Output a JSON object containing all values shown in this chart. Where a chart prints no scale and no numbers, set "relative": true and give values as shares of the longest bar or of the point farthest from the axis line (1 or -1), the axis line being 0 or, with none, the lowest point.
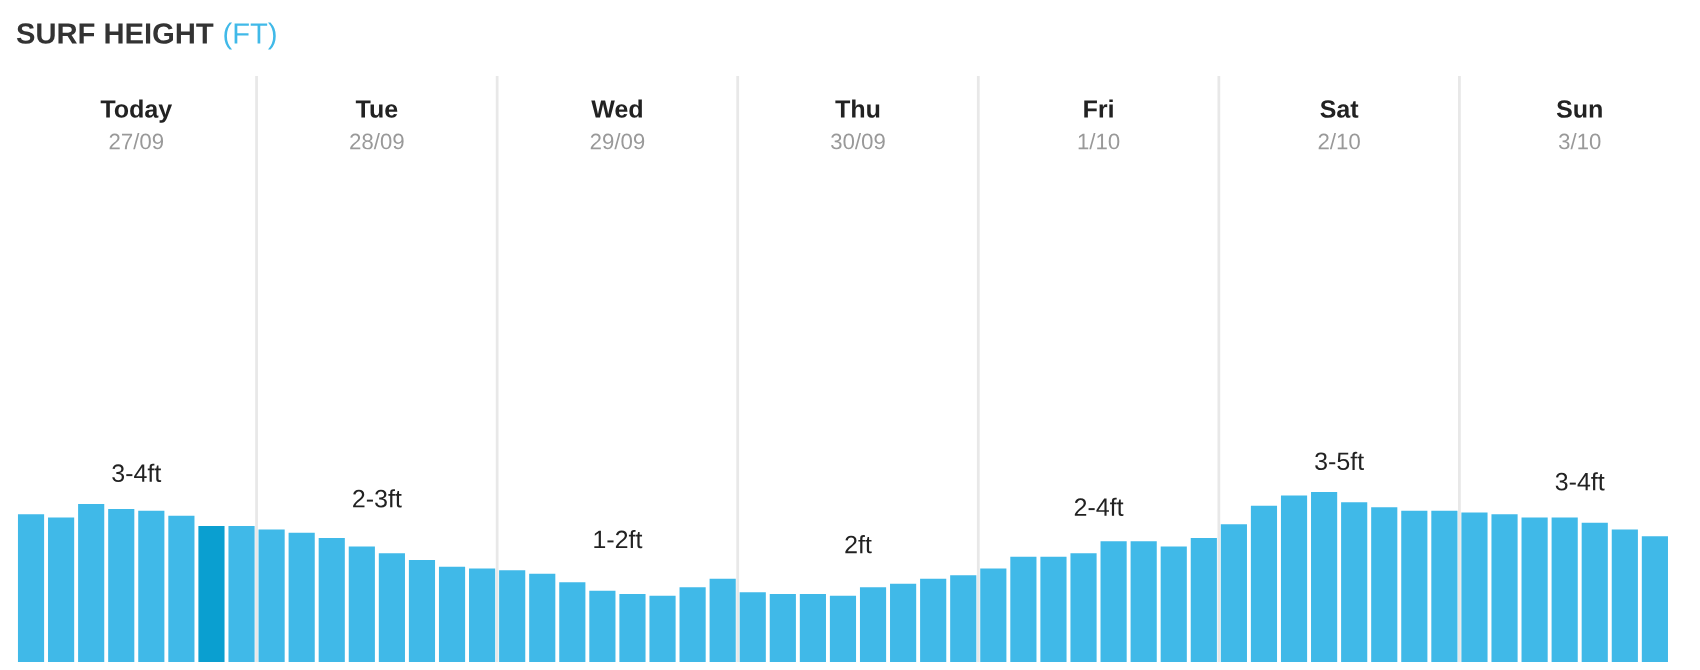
{
  "chart_data": {
    "type": "bar",
    "title": "SURF HEIGHT",
    "subtitle": "(FT)",
    "relative": true,
    "categories": [
      null,
      null,
      null,
      null,
      null,
      null,
      null,
      null,
      null,
      null,
      null,
      null,
      null,
      null,
      null,
      null,
      null,
      null,
      null,
      null,
      null,
      null,
      null,
      null,
      null,
      null,
      null,
      null,
      null,
      null,
      null,
      null,
      null,
      null,
      null,
      null,
      null,
      null,
      null,
      null,
      null,
      null,
      null,
      null,
      null,
      null,
      null,
      null,
      null,
      null,
      null,
      null,
      null,
      null,
      null
    ],
    "values": [
      0.87,
      0.85,
      0.93,
      0.9,
      0.89,
      0.86,
      0.8,
      0.8,
      0.78,
      0.76,
      0.73,
      0.68,
      0.64,
      0.6,
      0.56,
      0.55,
      0.54,
      0.52,
      0.47,
      0.42,
      0.4,
      0.39,
      0.44,
      0.49,
      0.41,
      0.4,
      0.4,
      0.39,
      0.44,
      0.46,
      0.49,
      0.51,
      0.55,
      0.62,
      0.62,
      0.64,
      0.71,
      0.71,
      0.68,
      0.73,
      0.81,
      0.92,
      0.98,
      1,
      0.94,
      0.91,
      0.89,
      0.89,
      0.88,
      0.87,
      0.85,
      0.85,
      0.82,
      0.78,
      0.74
    ],
    "colors": [
      "#40b9e8",
      "#40b9e8",
      "#40b9e8",
      "#40b9e8",
      "#40b9e8",
      "#40b9e8",
      "#0a9fd0",
      "#40b9e8",
      "#40b9e8",
      "#40b9e8",
      "#40b9e8",
      "#40b9e8",
      "#40b9e8",
      "#40b9e8",
      "#40b9e8",
      "#40b9e8",
      "#40b9e8",
      "#40b9e8",
      "#40b9e8",
      "#40b9e8",
      "#40b9e8",
      "#40b9e8",
      "#40b9e8",
      "#40b9e8",
      "#40b9e8",
      "#40b9e8",
      "#40b9e8",
      "#40b9e8",
      "#40b9e8",
      "#40b9e8",
      "#40b9e8",
      "#40b9e8",
      "#40b9e8",
      "#40b9e8",
      "#40b9e8",
      "#40b9e8",
      "#40b9e8",
      "#40b9e8",
      "#40b9e8",
      "#40b9e8",
      "#40b9e8",
      "#40b9e8",
      "#40b9e8",
      "#40b9e8",
      "#40b9e8",
      "#40b9e8",
      "#40b9e8",
      "#40b9e8",
      "#40b9e8",
      "#40b9e8",
      "#40b9e8",
      "#40b9e8",
      "#40b9e8",
      "#40b9e8",
      "#40b9e8"
    ],
    "annotations": [
      "Today",
      "27/09",
      "3-4ft",
      "Tue",
      "28/09",
      "2-3ft",
      "Wed",
      "29/09",
      "1-2ft",
      "Thu",
      "30/09",
      "2ft",
      "Fri",
      "1/10",
      "2-4ft",
      "Sat",
      "2/10",
      "3-5ft",
      "Sun",
      "3/10",
      "3-4ft"
    ],
    "grid": false,
    "legend": false
  }
}
